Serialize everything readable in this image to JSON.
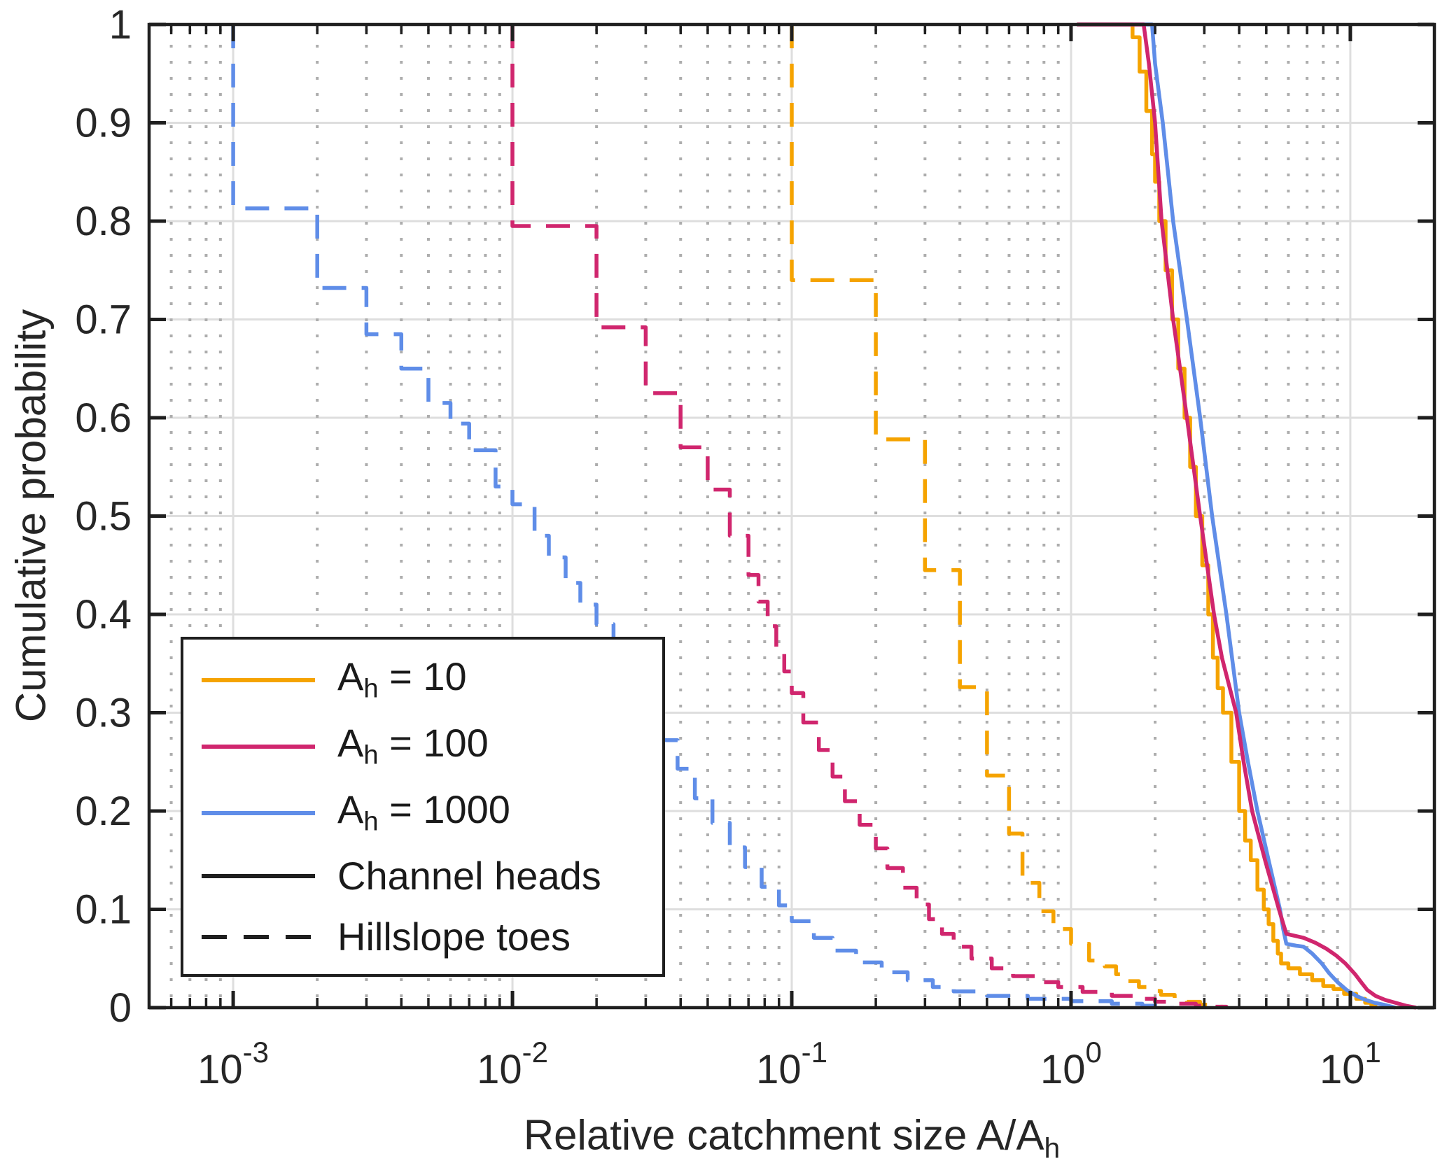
{
  "chart_data": {
    "type": "line",
    "title": "",
    "xlabel_main": "Relative catchment size A/A",
    "xlabel_sub": "h",
    "ylabel": "Cumulative probability",
    "x_scale": "log",
    "y_scale": "linear",
    "xlim": [
      0.0005,
      20
    ],
    "ylim": [
      0,
      1
    ],
    "grid": {
      "major": true,
      "minor_x_dotted": true,
      "minor_y": false
    },
    "x_tick_exponents": [
      -3,
      -2,
      -1,
      0,
      1
    ],
    "x_tick_base": "10",
    "y_ticks": [
      {
        "value": 0,
        "label": "0"
      },
      {
        "value": 0.1,
        "label": "0.1"
      },
      {
        "value": 0.2,
        "label": "0.2"
      },
      {
        "value": 0.3,
        "label": "0.3"
      },
      {
        "value": 0.4,
        "label": "0.4"
      },
      {
        "value": 0.5,
        "label": "0.5"
      },
      {
        "value": 0.6,
        "label": "0.6"
      },
      {
        "value": 0.7,
        "label": "0.7"
      },
      {
        "value": 0.8,
        "label": "0.8"
      },
      {
        "value": 0.9,
        "label": "0.9"
      },
      {
        "value": 1,
        "label": "1"
      }
    ],
    "colors": {
      "frame": "#1f1f1f",
      "grid_major": "#dedede",
      "grid_minor": "#adadad",
      "text": "#262626",
      "background": "#ffffff",
      "orange": "#F5A300",
      "crimson": "#D0266E",
      "blue": "#5F8DE8"
    },
    "legend": {
      "position": "southwest",
      "items": [
        {
          "label_main": "A",
          "label_sub": "h",
          "label_tail": " = 10",
          "line_style": "solid",
          "line_color": "#F5A300"
        },
        {
          "label_main": "A",
          "label_sub": "h",
          "label_tail": " = 100",
          "line_style": "solid",
          "line_color": "#D0266E"
        },
        {
          "label_main": "A",
          "label_sub": "h",
          "label_tail": " = 1000",
          "line_style": "solid",
          "line_color": "#5F8DE8"
        },
        {
          "label_main": "Channel heads",
          "label_sub": "",
          "label_tail": "",
          "line_style": "solid",
          "line_color": "#1f1f1f"
        },
        {
          "label_main": "Hillslope toes",
          "label_sub": "",
          "label_tail": "",
          "line_style": "dashed",
          "line_color": "#1f1f1f"
        }
      ]
    },
    "series": [
      {
        "id": "ah10-hillslope-toes",
        "name": "Ah = 10, Hillslope toes",
        "color": "#F5A300",
        "style": "dashed",
        "mode": "steps",
        "points": [
          [
            0.1,
            0.74
          ],
          [
            0.2,
            0.578
          ],
          [
            0.3,
            0.445
          ],
          [
            0.4,
            0.326
          ],
          [
            0.5,
            0.236
          ],
          [
            0.6,
            0.177
          ],
          [
            0.67,
            0.127
          ],
          [
            0.77,
            0.098
          ],
          [
            0.865,
            0.08
          ],
          [
            1.0,
            0.065
          ],
          [
            1.16,
            0.048
          ],
          [
            1.32,
            0.042
          ],
          [
            1.45,
            0.034
          ],
          [
            1.6,
            0.027
          ],
          [
            1.75,
            0.021
          ],
          [
            1.9,
            0.017
          ],
          [
            2.1,
            0.013
          ],
          [
            2.35,
            0.009
          ],
          [
            2.6,
            0.006
          ],
          [
            2.9,
            0.003
          ],
          [
            3.2,
            0.001
          ],
          [
            3.5,
            0
          ]
        ]
      },
      {
        "id": "ah100-hillslope-toes",
        "name": "Ah = 100, Hillslope toes",
        "color": "#D0266E",
        "style": "dashed",
        "mode": "steps",
        "points": [
          [
            0.01,
            0.795
          ],
          [
            0.02,
            0.692
          ],
          [
            0.03,
            0.625
          ],
          [
            0.04,
            0.57
          ],
          [
            0.05,
            0.527
          ],
          [
            0.06,
            0.48
          ],
          [
            0.07,
            0.44
          ],
          [
            0.076,
            0.413
          ],
          [
            0.082,
            0.388
          ],
          [
            0.088,
            0.362
          ],
          [
            0.094,
            0.342
          ],
          [
            0.1,
            0.32
          ],
          [
            0.11,
            0.29
          ],
          [
            0.125,
            0.262
          ],
          [
            0.14,
            0.235
          ],
          [
            0.155,
            0.21
          ],
          [
            0.175,
            0.186
          ],
          [
            0.2,
            0.162
          ],
          [
            0.22,
            0.142
          ],
          [
            0.25,
            0.122
          ],
          [
            0.28,
            0.105
          ],
          [
            0.31,
            0.09
          ],
          [
            0.345,
            0.075
          ],
          [
            0.38,
            0.062
          ],
          [
            0.44,
            0.05
          ],
          [
            0.52,
            0.04
          ],
          [
            0.62,
            0.032
          ],
          [
            0.75,
            0.026
          ],
          [
            0.9,
            0.021
          ],
          [
            1.1,
            0.016
          ],
          [
            1.4,
            0.012
          ],
          [
            1.7,
            0.009
          ],
          [
            2.0,
            0.006
          ],
          [
            2.4,
            0.004
          ],
          [
            2.8,
            0.002
          ],
          [
            3.2,
            0.001
          ],
          [
            3.6,
            0
          ]
        ]
      },
      {
        "id": "ah1000-hillslope-toes",
        "name": "Ah = 1000, Hillslope toes",
        "color": "#5F8DE8",
        "style": "dashed",
        "mode": "steps",
        "points": [
          [
            0.001,
            0.813
          ],
          [
            0.002,
            0.732
          ],
          [
            0.003,
            0.685
          ],
          [
            0.004,
            0.65
          ],
          [
            0.005,
            0.615
          ],
          [
            0.006,
            0.594
          ],
          [
            0.007,
            0.567
          ],
          [
            0.0087,
            0.53
          ],
          [
            0.01,
            0.512
          ],
          [
            0.012,
            0.48
          ],
          [
            0.0135,
            0.458
          ],
          [
            0.0155,
            0.432
          ],
          [
            0.0175,
            0.41
          ],
          [
            0.02,
            0.39
          ],
          [
            0.023,
            0.357
          ],
          [
            0.026,
            0.33
          ],
          [
            0.03,
            0.3
          ],
          [
            0.034,
            0.272
          ],
          [
            0.039,
            0.243
          ],
          [
            0.045,
            0.213
          ],
          [
            0.052,
            0.188
          ],
          [
            0.06,
            0.163
          ],
          [
            0.068,
            0.143
          ],
          [
            0.078,
            0.123
          ],
          [
            0.09,
            0.104
          ],
          [
            0.1,
            0.088
          ],
          [
            0.12,
            0.071
          ],
          [
            0.14,
            0.058
          ],
          [
            0.17,
            0.046
          ],
          [
            0.21,
            0.036
          ],
          [
            0.26,
            0.028
          ],
          [
            0.32,
            0.021
          ],
          [
            0.38,
            0.0165
          ],
          [
            0.5,
            0.012
          ],
          [
            0.7,
            0.009
          ],
          [
            1.0,
            0.0066
          ],
          [
            1.4,
            0.004
          ],
          [
            1.8,
            0.002
          ],
          [
            2.3,
            0
          ]
        ]
      },
      {
        "id": "ah10-channel-heads",
        "name": "Ah = 10, Channel heads",
        "color": "#F5A300",
        "style": "solid",
        "mode": "steps",
        "points": [
          [
            1.05,
            1.0
          ],
          [
            1.66,
            0.987
          ],
          [
            1.76,
            0.952
          ],
          [
            1.86,
            0.912
          ],
          [
            1.95,
            0.868
          ],
          [
            2.0,
            0.84
          ],
          [
            2.07,
            0.8
          ],
          [
            2.18,
            0.75
          ],
          [
            2.3,
            0.7
          ],
          [
            2.42,
            0.65
          ],
          [
            2.55,
            0.6
          ],
          [
            2.67,
            0.55
          ],
          [
            2.8,
            0.5
          ],
          [
            2.95,
            0.45
          ],
          [
            3.1,
            0.4
          ],
          [
            3.22,
            0.356
          ],
          [
            3.35,
            0.325
          ],
          [
            3.5,
            0.3
          ],
          [
            3.75,
            0.25
          ],
          [
            4.0,
            0.2
          ],
          [
            4.2,
            0.17
          ],
          [
            4.4,
            0.15
          ],
          [
            4.65,
            0.12
          ],
          [
            4.9,
            0.1
          ],
          [
            5.1,
            0.085
          ],
          [
            5.3,
            0.068
          ],
          [
            5.5,
            0.055
          ],
          [
            5.65,
            0.045
          ],
          [
            6.0,
            0.04
          ],
          [
            6.6,
            0.034
          ],
          [
            7.3,
            0.028
          ],
          [
            8.0,
            0.022
          ],
          [
            8.7,
            0.019
          ],
          [
            9.5,
            0.014
          ],
          [
            10.5,
            0.009
          ],
          [
            11.3,
            0.005
          ],
          [
            11.9,
            0.002
          ],
          [
            12.3,
            0
          ]
        ]
      },
      {
        "id": "ah1000-channel-heads",
        "name": "Ah = 1000, Channel heads",
        "color": "#5F8DE8",
        "style": "solid",
        "mode": "line",
        "points": [
          [
            1.05,
            1.0
          ],
          [
            1.95,
            1.0
          ],
          [
            2.0,
            0.96
          ],
          [
            2.13,
            0.9
          ],
          [
            2.32,
            0.8
          ],
          [
            2.6,
            0.7
          ],
          [
            2.9,
            0.6
          ],
          [
            3.2,
            0.5
          ],
          [
            3.6,
            0.4
          ],
          [
            4.0,
            0.3
          ],
          [
            4.3,
            0.25
          ],
          [
            4.65,
            0.2
          ],
          [
            5.1,
            0.15
          ],
          [
            5.6,
            0.1
          ],
          [
            5.75,
            0.08
          ],
          [
            5.9,
            0.065
          ],
          [
            6.4,
            0.063
          ],
          [
            6.8,
            0.062
          ],
          [
            7.3,
            0.055
          ],
          [
            7.9,
            0.045
          ],
          [
            8.4,
            0.035
          ],
          [
            9.0,
            0.026
          ],
          [
            9.7,
            0.018
          ],
          [
            10.5,
            0.012
          ],
          [
            11.3,
            0.008
          ],
          [
            12.2,
            0.005
          ],
          [
            13.2,
            0.003
          ],
          [
            14.5,
            0
          ]
        ]
      },
      {
        "id": "ah100-channel-heads",
        "name": "Ah = 100, Channel heads",
        "color": "#D0266E",
        "style": "solid",
        "mode": "line",
        "points": [
          [
            1.05,
            1.0
          ],
          [
            1.82,
            1.0
          ],
          [
            1.9,
            0.96
          ],
          [
            2.0,
            0.9
          ],
          [
            2.11,
            0.8
          ],
          [
            2.32,
            0.7
          ],
          [
            2.6,
            0.6
          ],
          [
            2.9,
            0.5
          ],
          [
            3.25,
            0.4
          ],
          [
            3.47,
            0.356
          ],
          [
            3.9,
            0.3
          ],
          [
            4.15,
            0.25
          ],
          [
            4.45,
            0.2
          ],
          [
            4.95,
            0.15
          ],
          [
            5.55,
            0.1
          ],
          [
            5.9,
            0.075
          ],
          [
            6.8,
            0.071
          ],
          [
            7.5,
            0.066
          ],
          [
            8.2,
            0.06
          ],
          [
            8.9,
            0.053
          ],
          [
            9.6,
            0.045
          ],
          [
            10.4,
            0.034
          ],
          [
            11.0,
            0.025
          ],
          [
            11.5,
            0.018
          ],
          [
            12.3,
            0.012
          ],
          [
            13.3,
            0.008
          ],
          [
            14.5,
            0.005
          ],
          [
            15.8,
            0.002
          ],
          [
            17.2,
            0
          ]
        ]
      }
    ]
  }
}
